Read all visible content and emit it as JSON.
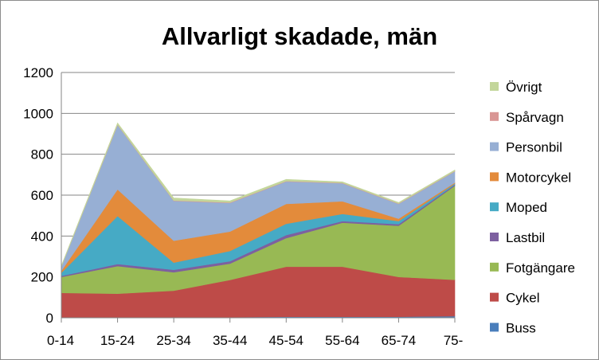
{
  "chart_data": {
    "type": "area",
    "stacked": true,
    "title": "Allvarligt skadade, män",
    "xlabel": "",
    "ylabel": "",
    "ylim": [
      0,
      1200
    ],
    "yticks": [
      0,
      200,
      400,
      600,
      800,
      1000,
      1200
    ],
    "categories": [
      "0-14",
      "15-24",
      "25-34",
      "35-44",
      "45-54",
      "55-64",
      "65-74",
      "75-"
    ],
    "grid": true,
    "legend_position": "right",
    "series": [
      {
        "name": "Buss",
        "color": "#4a7ebb",
        "values": [
          2,
          3,
          3,
          3,
          5,
          5,
          5,
          8
        ]
      },
      {
        "name": "Cykel",
        "color": "#be4b48",
        "values": [
          120,
          115,
          130,
          182,
          245,
          245,
          195,
          178
        ]
      },
      {
        "name": "Fotgängare",
        "color": "#98b954",
        "values": [
          78,
          135,
          90,
          80,
          140,
          215,
          250,
          460
        ]
      },
      {
        "name": "Lastbil",
        "color": "#7d60a0",
        "values": [
          5,
          10,
          12,
          12,
          15,
          8,
          8,
          5
        ]
      },
      {
        "name": "Moped",
        "color": "#46aac5",
        "values": [
          15,
          235,
          35,
          50,
          55,
          35,
          15,
          5
        ]
      },
      {
        "name": "Motorcykel",
        "color": "#e38b3b",
        "values": [
          10,
          130,
          107,
          95,
          97,
          62,
          12,
          5
        ]
      },
      {
        "name": "Personbil",
        "color": "#97afd4",
        "values": [
          20,
          315,
          195,
          140,
          110,
          88,
          72,
          55
        ]
      },
      {
        "name": "Spårvagn",
        "color": "#d99694",
        "values": [
          0,
          2,
          2,
          2,
          2,
          2,
          2,
          2
        ]
      },
      {
        "name": "Övrigt",
        "color": "#c3d69b",
        "values": [
          5,
          8,
          12,
          8,
          8,
          5,
          5,
          5
        ]
      }
    ],
    "legend_order": [
      "Övrigt",
      "Spårvagn",
      "Personbil",
      "Motorcykel",
      "Moped",
      "Lastbil",
      "Fotgängare",
      "Cykel",
      "Buss"
    ]
  }
}
